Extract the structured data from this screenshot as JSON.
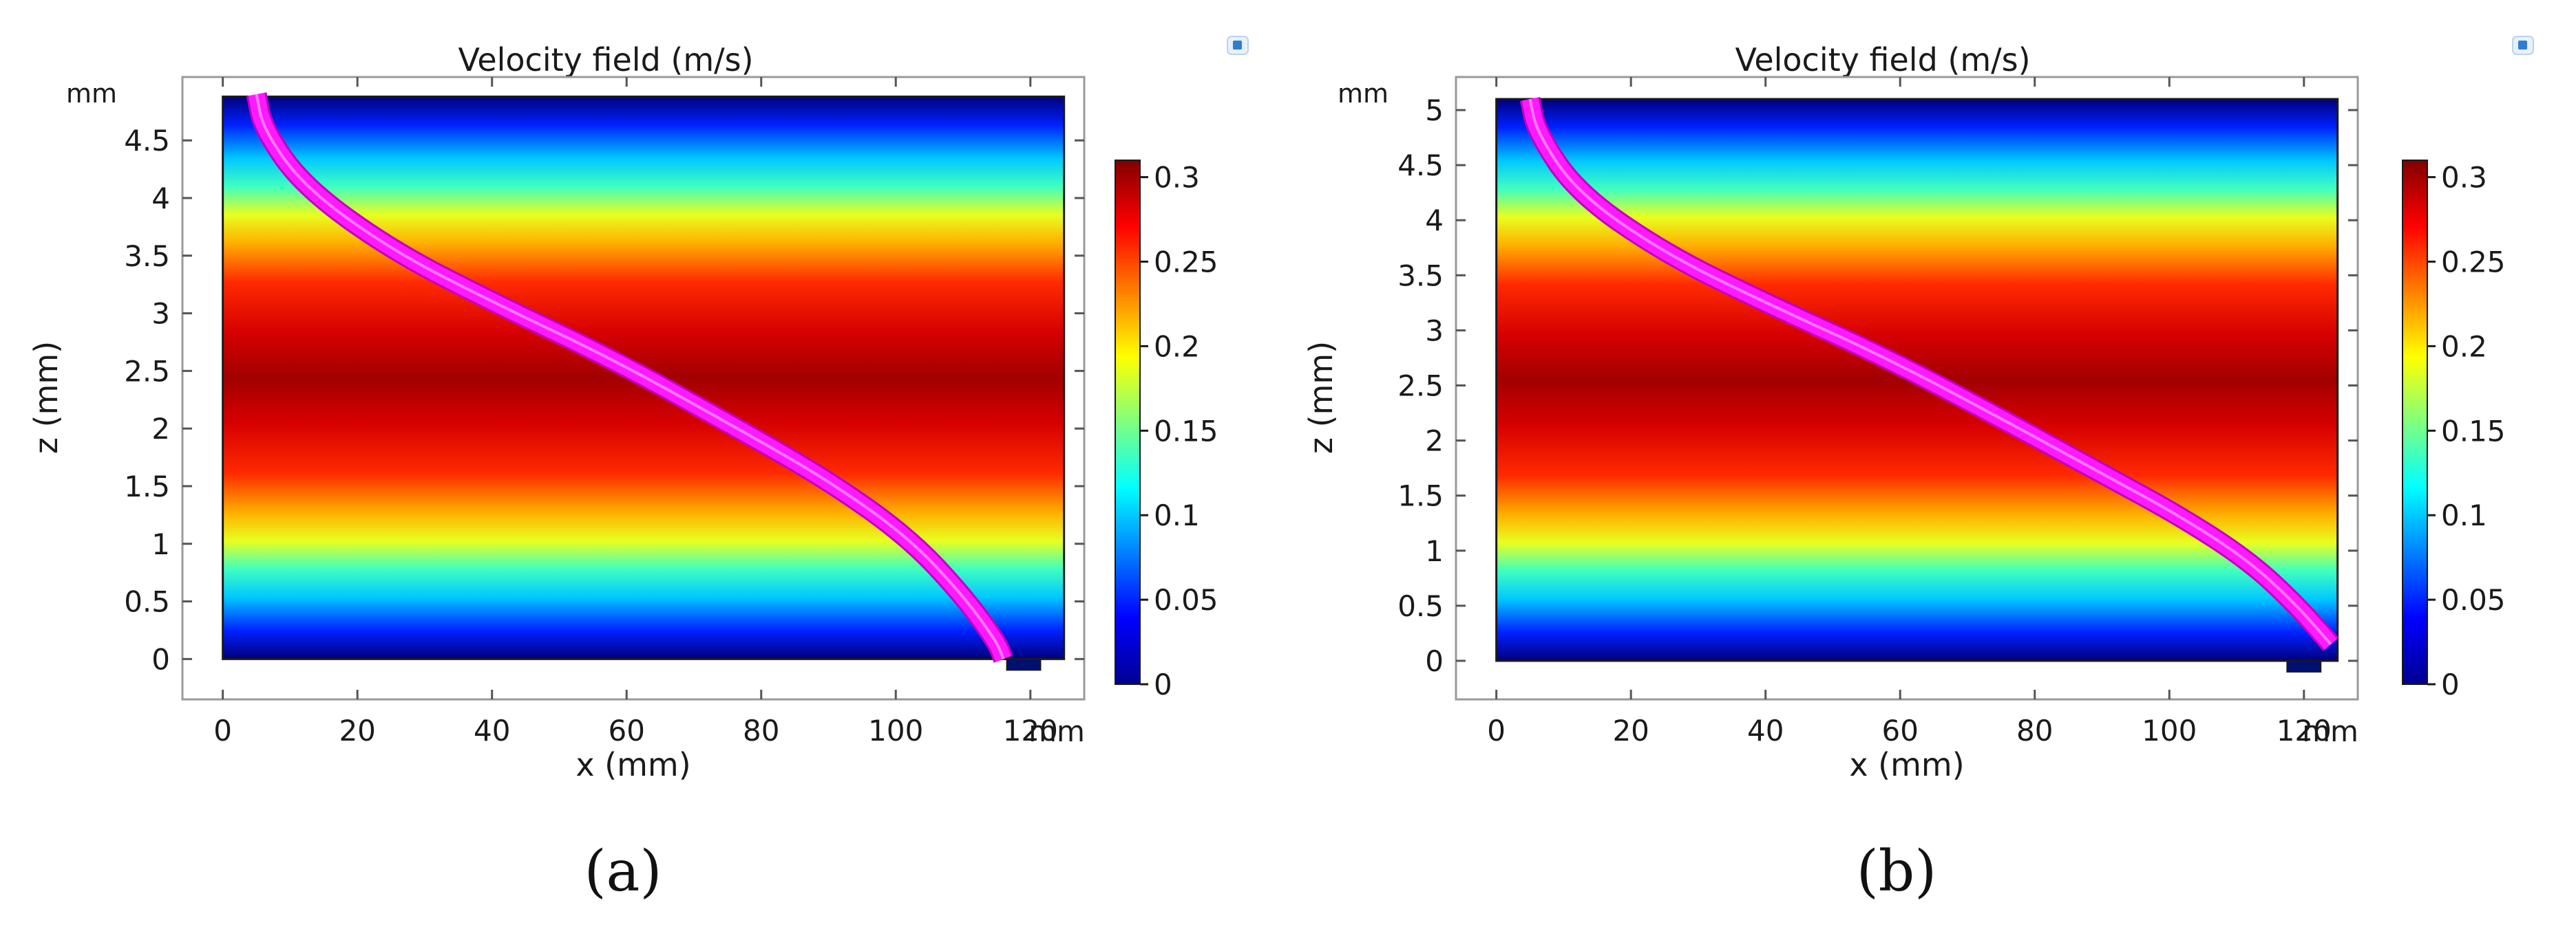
{
  "chart_data": [
    {
      "type": "heatmap",
      "panel_label": "(a)",
      "title": "Velocity field (m/s)",
      "xlabel": "x (mm)",
      "ylabel": "z (mm)",
      "axis_unit": "mm",
      "xlim": [
        -6,
        128
      ],
      "ylim": [
        -0.35,
        5.05
      ],
      "domain": {
        "x": [
          0,
          125
        ],
        "z": [
          0,
          4.88
        ]
      },
      "xticks": [
        0,
        20,
        40,
        60,
        80,
        100,
        120
      ],
      "xtick_labels": [
        "0",
        "20",
        "40",
        "60",
        "80",
        "100",
        "120"
      ],
      "yticks": [
        0,
        0.5,
        1,
        1.5,
        2,
        2.5,
        3,
        3.5,
        4,
        4.5
      ],
      "ytick_labels": [
        "0",
        "0.5",
        "1",
        "1.5",
        "2",
        "2.5",
        "3",
        "3.5",
        "4",
        "4.5"
      ],
      "colorbar": {
        "min": 0,
        "max": 0.31,
        "ticks": [
          0,
          0.05,
          0.1,
          0.15,
          0.2,
          0.25,
          0.3
        ],
        "tick_labels": [
          "0",
          "0.05",
          "0.1",
          "0.15",
          "0.2",
          "0.25",
          "0.3"
        ],
        "colormap": "jet"
      },
      "streamline": {
        "color": "#ff19ff",
        "points": [
          [
            5,
            4.9
          ],
          [
            6,
            4.6
          ],
          [
            12,
            4.1
          ],
          [
            25,
            3.55
          ],
          [
            40,
            3.1
          ],
          [
            58,
            2.6
          ],
          [
            75,
            2.05
          ],
          [
            90,
            1.55
          ],
          [
            102,
            1.05
          ],
          [
            110,
            0.55
          ],
          [
            115,
            0.15
          ],
          [
            116,
            0
          ]
        ]
      },
      "outlet": {
        "x": [
          116.5,
          121.5
        ]
      }
    },
    {
      "type": "heatmap",
      "panel_label": "(b)",
      "title": "Velocity field (m/s)",
      "xlabel": "x (mm)",
      "ylabel": "z (mm)",
      "axis_unit": "mm",
      "xlim": [
        -6,
        128
      ],
      "ylim": [
        -0.35,
        5.3
      ],
      "domain": {
        "x": [
          0,
          125
        ],
        "z": [
          0,
          5.1
        ]
      },
      "xticks": [
        0,
        20,
        40,
        60,
        80,
        100,
        120
      ],
      "xtick_labels": [
        "0",
        "20",
        "40",
        "60",
        "80",
        "100",
        "120"
      ],
      "yticks": [
        0,
        0.5,
        1,
        1.5,
        2,
        2.5,
        3,
        3.5,
        4,
        4.5,
        5
      ],
      "ytick_labels": [
        "0",
        "0.5",
        "1",
        "1.5",
        "2",
        "2.5",
        "3",
        "3.5",
        "4",
        "4.5",
        "5"
      ],
      "colorbar": {
        "min": 0,
        "max": 0.31,
        "ticks": [
          0,
          0.05,
          0.1,
          0.15,
          0.2,
          0.25,
          0.3
        ],
        "tick_labels": [
          "0",
          "0.05",
          "0.1",
          "0.15",
          "0.2",
          "0.25",
          "0.3"
        ],
        "colormap": "jet"
      },
      "streamline": {
        "color": "#ff19ff",
        "points": [
          [
            5,
            5.1
          ],
          [
            6,
            4.8
          ],
          [
            12,
            4.25
          ],
          [
            25,
            3.7
          ],
          [
            40,
            3.25
          ],
          [
            58,
            2.75
          ],
          [
            75,
            2.2
          ],
          [
            90,
            1.7
          ],
          [
            102,
            1.3
          ],
          [
            112,
            0.9
          ],
          [
            119,
            0.5
          ],
          [
            124,
            0.15
          ]
        ]
      },
      "outlet": {
        "x": [
          117.5,
          122.5
        ]
      }
    }
  ]
}
